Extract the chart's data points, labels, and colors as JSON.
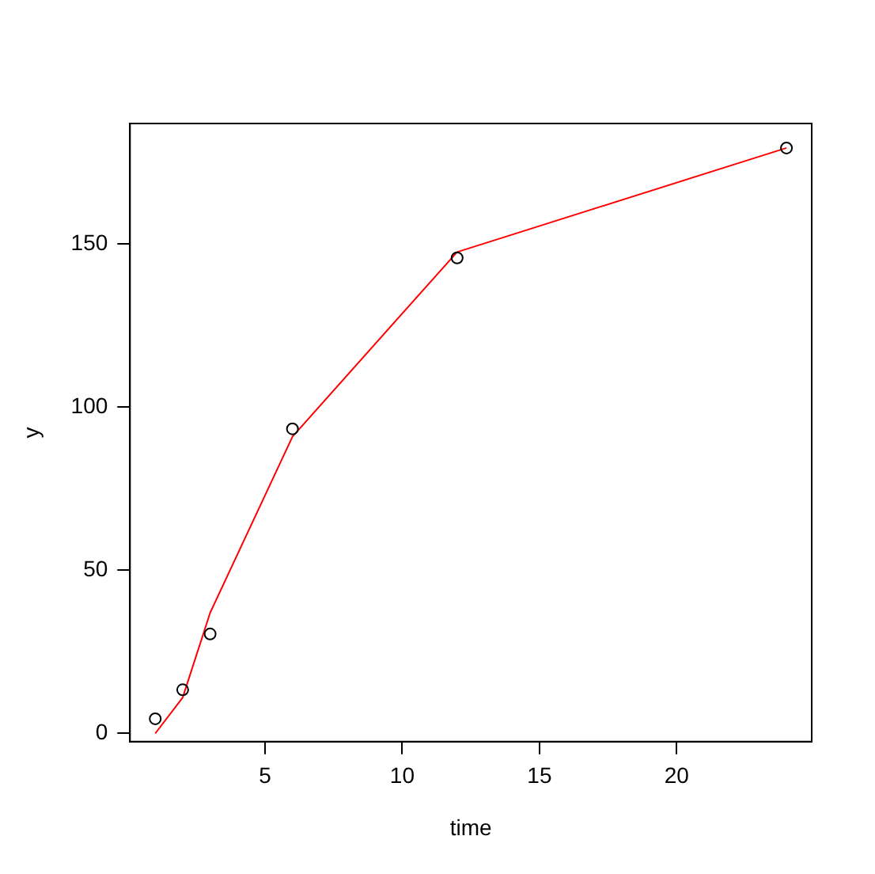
{
  "chart_data": {
    "type": "scatter",
    "xlabel": "time",
    "ylabel": "y",
    "x": [
      1,
      2,
      3,
      6,
      12,
      24
    ],
    "series": [
      {
        "type": "scatter",
        "color": "#000000",
        "marker": "circle",
        "values": [
          4.5,
          13.4,
          30.5,
          93.4,
          145.8,
          179.5
        ]
      },
      {
        "type": "line",
        "color": "#ff0000",
        "marker": "none",
        "line_style": "solid",
        "values": [
          0,
          11,
          37,
          91,
          147.6,
          179.5
        ]
      }
    ],
    "xlim": [
      0.08,
      24.92
    ],
    "ylim": [
      -2.5,
      187
    ],
    "xticks": [
      5,
      10,
      15,
      20
    ],
    "yticks": [
      0,
      50,
      100,
      150
    ],
    "grid": false,
    "legend": false
  }
}
